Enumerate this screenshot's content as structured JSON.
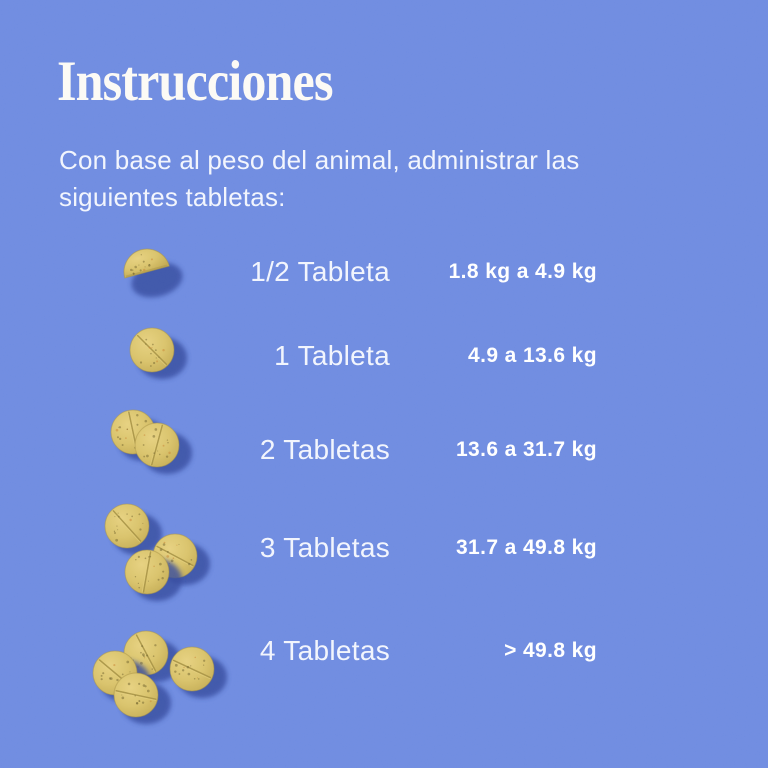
{
  "page": {
    "title": "Instrucciones"
  },
  "intro": {
    "lines": [
      "Con base al peso del animal, administrar las",
      "siguientes tabletas:"
    ]
  },
  "dosage_table": {
    "rows": [
      {
        "icon": "tablet-half-icon",
        "tablet_count": "1/2",
        "label": "1/2 Tableta",
        "weight_range": "1.8 kg a 4.9 kg"
      },
      {
        "icon": "tablet-one-icon",
        "tablet_count": "1",
        "label": "1 Tableta",
        "weight_range": "4.9 a 13.6 kg"
      },
      {
        "icon": "tablet-two-icon",
        "tablet_count": "2",
        "label": "2 Tabletas",
        "weight_range": "13.6 a 31.7 kg"
      },
      {
        "icon": "tablet-three-icon",
        "tablet_count": "3",
        "label": "3 Tabletas",
        "weight_range": "31.7 a 49.8 kg"
      },
      {
        "icon": "tablet-four-icon",
        "tablet_count": "4",
        "label": "4 Tabletas",
        "weight_range": "> 49.8 kg"
      }
    ]
  },
  "colors": {
    "background": "#6A88E0",
    "title_text": "#FCFAF5",
    "body_text": "#F2F5FD",
    "weight_text": "#FFFFFF",
    "tablet": "#D8C166",
    "tablet_light": "#E6D07C",
    "tablet_dark": "#C2A94E",
    "tablet_edge": "#A5903E",
    "tablet_shadow": "#2D459B"
  }
}
